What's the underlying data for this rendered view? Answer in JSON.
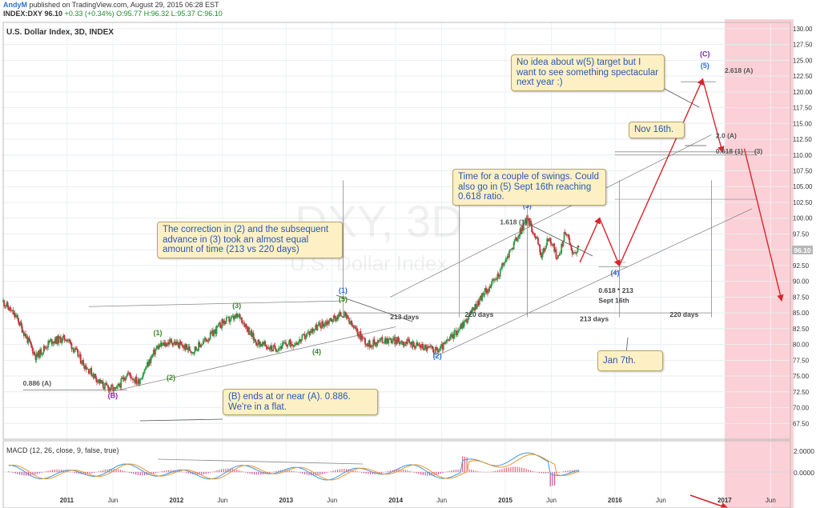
{
  "header": {
    "author": "AndyM",
    "published": "published on TradingView.com, August 29, 2015 06:28 EST",
    "symbol": "INDEX:DXY",
    "last": "96.10",
    "change": "+0.33 (+0.34%)",
    "ohlc": "O:95.77 H:96.32 L:95.37 C:96.10"
  },
  "colors": {
    "candle_up": "#2e9e4a",
    "candle_down": "#c9303a",
    "wave_green": "#3b8a1e",
    "wave_blue": "#2a6fcf",
    "wave_purple": "#8a1ea8",
    "projection": "#d9242c",
    "future_zone": "#fbd0d6",
    "note_bg": "#fdf0c4"
  },
  "chart_data": {
    "type": "candlestick",
    "title": "U.S. Dollar Index, 3D, INDEX",
    "watermark": "DXY, 3D",
    "watermark_sub": "U.S. Dollar Index",
    "last_price_label": "96.10",
    "ylim": [
      65,
      131
    ],
    "y_ticks": [
      "67.50",
      "70.00",
      "72.50",
      "75.00",
      "77.50",
      "80.00",
      "82.50",
      "85.00",
      "87.50",
      "90.00",
      "92.50",
      "95.00",
      "97.50",
      "100.00",
      "102.50",
      "105.00",
      "107.50",
      "110.00",
      "112.50",
      "115.00",
      "117.50",
      "120.00",
      "122.50",
      "125.00",
      "127.50",
      "130.00"
    ],
    "x_ticks": [
      {
        "label": "2011",
        "t": 2011.0
      },
      {
        "label": "Jun",
        "t": 2011.42
      },
      {
        "label": "2012",
        "t": 2012.0
      },
      {
        "label": "Jun",
        "t": 2012.42
      },
      {
        "label": "2013",
        "t": 2013.0
      },
      {
        "label": "Jun",
        "t": 2013.42
      },
      {
        "label": "2014",
        "t": 2014.0
      },
      {
        "label": "Jun",
        "t": 2014.42
      },
      {
        "label": "2015",
        "t": 2015.0
      },
      {
        "label": "Jun",
        "t": 2015.42
      },
      {
        "label": "2016",
        "t": 2016.0
      },
      {
        "label": "Jun",
        "t": 2016.42
      },
      {
        "label": "2017",
        "t": 2017.0
      },
      {
        "label": "Jun",
        "t": 2017.42
      }
    ],
    "price_path": [
      [
        2010.42,
        86.8
      ],
      [
        2010.55,
        84.0
      ],
      [
        2010.72,
        78.0
      ],
      [
        2010.85,
        80.5
      ],
      [
        2011.0,
        81.0
      ],
      [
        2011.15,
        77.0
      ],
      [
        2011.33,
        73.5
      ],
      [
        2011.45,
        72.7
      ],
      [
        2011.55,
        75.5
      ],
      [
        2011.65,
        74.0
      ],
      [
        2011.82,
        79.5
      ],
      [
        2011.95,
        80.5
      ],
      [
        2012.15,
        79.0
      ],
      [
        2012.32,
        81.5
      ],
      [
        2012.42,
        83.5
      ],
      [
        2012.58,
        84.5
      ],
      [
        2012.72,
        80.5
      ],
      [
        2012.88,
        79.3
      ],
      [
        2013.0,
        80.0
      ],
      [
        2013.12,
        80.5
      ],
      [
        2013.25,
        82.5
      ],
      [
        2013.42,
        84.0
      ],
      [
        2013.52,
        84.9
      ],
      [
        2013.62,
        82.5
      ],
      [
        2013.75,
        80.0
      ],
      [
        2013.9,
        80.8
      ],
      [
        2014.05,
        80.5
      ],
      [
        2014.22,
        79.8
      ],
      [
        2014.38,
        79.0
      ],
      [
        2014.45,
        80.0
      ],
      [
        2014.55,
        82.0
      ],
      [
        2014.65,
        84.0
      ],
      [
        2014.8,
        88.0
      ],
      [
        2014.92,
        90.5
      ],
      [
        2015.05,
        95.0
      ],
      [
        2015.2,
        100.0
      ],
      [
        2015.28,
        97.0
      ],
      [
        2015.33,
        94.0
      ],
      [
        2015.4,
        97.0
      ],
      [
        2015.48,
        93.5
      ],
      [
        2015.55,
        98.0
      ],
      [
        2015.63,
        94.0
      ],
      [
        2015.67,
        96.1
      ]
    ],
    "projection_path": [
      [
        2015.68,
        93.0
      ],
      [
        2015.86,
        100.0
      ],
      [
        2016.04,
        92.5
      ],
      [
        2016.8,
        122.0
      ],
      [
        2016.98,
        110.5
      ]
    ],
    "projection_tail": [
      [
        2017.18,
        111.0
      ],
      [
        2017.52,
        87.0
      ]
    ],
    "waves": [
      {
        "label": "(B)",
        "t": 2011.42,
        "v": 71.5,
        "color": "purple"
      },
      {
        "label": "(1)",
        "t": 2011.83,
        "v": 81.5,
        "color": "green"
      },
      {
        "label": "(2)",
        "t": 2011.95,
        "v": 74.4,
        "color": "green"
      },
      {
        "label": "(3)",
        "t": 2012.55,
        "v": 85.8,
        "color": "green"
      },
      {
        "label": "(4)",
        "t": 2013.28,
        "v": 78.5,
        "color": "green"
      },
      {
        "label": "(1)",
        "t": 2013.52,
        "v": 88.2,
        "color": "blue"
      },
      {
        "label": "(5)",
        "t": 2013.52,
        "v": 86.8,
        "color": "green"
      },
      {
        "label": "(2)",
        "t": 2014.38,
        "v": 77.8,
        "color": "blue"
      },
      {
        "label": "(3)",
        "t": 2015.2,
        "v": 101.6,
        "color": "blue"
      },
      {
        "label": "(4)",
        "t": 2016.0,
        "v": 91.0,
        "color": "blue"
      },
      {
        "label": "(5)",
        "t": 2016.82,
        "v": 123.8,
        "color": "blue"
      },
      {
        "label": "(C)",
        "t": 2016.82,
        "v": 125.6,
        "color": "purple"
      }
    ],
    "fib_labels": [
      {
        "label": "0.886 (A)",
        "t": 2010.6,
        "v": 73.5
      },
      {
        "label": "1.618 (1)",
        "t": 2014.95,
        "v": 99.0
      },
      {
        "label": "2.618 (A)",
        "t": 2017.0,
        "v": 123.0
      },
      {
        "label": "2.0 (A)",
        "t": 2016.92,
        "v": 112.7
      },
      {
        "label": "0.618 (1)",
        "t": 2016.92,
        "v": 110.2
      },
      {
        "label": "(3)",
        "t": 2017.27,
        "v": 110.2
      }
    ],
    "time_labels": [
      {
        "label": "213 days",
        "t": 2013.95,
        "v": 84.0
      },
      {
        "label": "220 days",
        "t": 2014.63,
        "v": 84.4
      },
      {
        "label": "213 days",
        "t": 2015.68,
        "v": 83.7
      },
      {
        "label": "220 days",
        "t": 2016.5,
        "v": 84.4
      },
      {
        "label": "0.618 * 213",
        "t": 2015.85,
        "v": 88.2
      },
      {
        "label": "Sept 16th",
        "t": 2015.85,
        "v": 86.6
      }
    ],
    "notes": [
      {
        "text": "The correction in (2) and the subsequent advance in (3) took an almost equal amount of time (213 vs 220 days)"
      },
      {
        "text": "Time for a couple of swings. Could also go in (5) Sept 16th reaching 0.618 ratio."
      },
      {
        "text": "No idea about w(5) target but I want to see something spectacular next year :)"
      },
      {
        "text": "Nov 16th."
      },
      {
        "text": "Jan 7th."
      },
      {
        "text": "(B) ends at or near (A). 0.886. We're in a flat."
      }
    ],
    "macd": {
      "title": "MACD (12, 26, close, 9, false, true)",
      "y_ticks": [
        "2.0000",
        "0.0000"
      ]
    }
  }
}
